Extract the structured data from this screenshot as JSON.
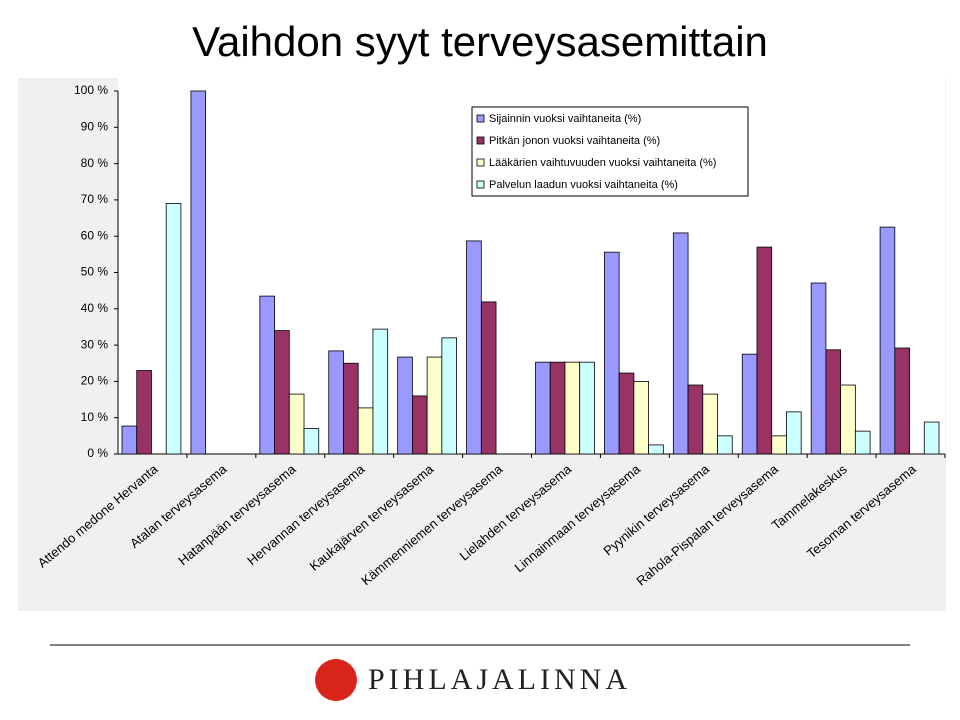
{
  "chart_data": {
    "type": "bar",
    "title": "Vaihdon syyt terveysasemittain",
    "categories": [
      "Attendo medone Hervanta",
      "Atalan terveysasema",
      "Hatanpään terveysasema",
      "Hervannan terveysasema",
      "Kaukajärven terveysasema",
      "Kämmenniemen terveysasema",
      "Lielahden terveysasema",
      "Linnainmaan terveysasema",
      "Pyynikin terveysasema",
      "Rahola-Pispalan terveysasema",
      "Tammelakeskus",
      "Tesoman terveysasema"
    ],
    "series": [
      {
        "name": "Sijainnin vuoksi vaihtaneita (%)",
        "color": "#9999ff",
        "values": [
          7.7,
          100,
          43.5,
          28.4,
          26.7,
          58.7,
          25.3,
          55.6,
          60.9,
          27.5,
          47.1,
          62.5
        ]
      },
      {
        "name": "Pitkän jonon vuoksi vaihtaneita (%)",
        "color": "#993366",
        "values": [
          23,
          0,
          34,
          25,
          16,
          41.9,
          25.3,
          22.3,
          19,
          57,
          28.7,
          29.2
        ]
      },
      {
        "name": "Lääkärien vaihtuvuuden vuoksi vaihtaneita (%)",
        "color": "#ffffcc",
        "values": [
          0,
          0,
          16.5,
          12.7,
          26.7,
          0,
          25.3,
          20,
          16.5,
          5,
          19,
          0
        ]
      },
      {
        "name": "Palvelun laadun vuoksi vaihtaneita (%)",
        "color": "#ccffff",
        "values": [
          69,
          0,
          7,
          34.4,
          32,
          0,
          25.3,
          2.5,
          5,
          11.6,
          6.3,
          8.8
        ]
      }
    ],
    "ylim": [
      0,
      100
    ],
    "yticks": [
      {
        "value": 0,
        "label": "0 %"
      },
      {
        "value": 10,
        "label": "10 %"
      },
      {
        "value": 20,
        "label": "20 %"
      },
      {
        "value": 30,
        "label": "30 %"
      },
      {
        "value": 40,
        "label": "40 %"
      },
      {
        "value": 50,
        "label": "50 %"
      },
      {
        "value": 60,
        "label": "60 %"
      },
      {
        "value": 70,
        "label": "70 %"
      },
      {
        "value": 80,
        "label": "80 %"
      },
      {
        "value": 90,
        "label": "90 %"
      },
      {
        "value": 100,
        "label": "100 %"
      }
    ],
    "grid": false
  },
  "footer": {
    "logo": "PIHLAJALINNA"
  }
}
